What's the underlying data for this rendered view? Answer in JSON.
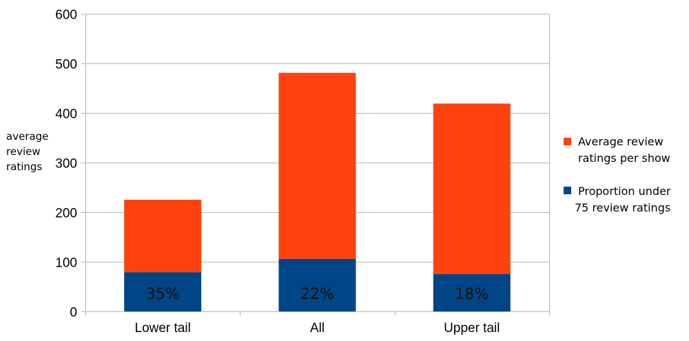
{
  "chart_data": {
    "type": "bar",
    "stacked": true,
    "categories": [
      "Lower tail",
      "All",
      "Upper tail"
    ],
    "series": [
      {
        "name": "Proportion under 75  review ratings",
        "legend_lines": [
          "Proportion under",
          "75  review ratings"
        ],
        "color": "#004586",
        "values": [
          79,
          106,
          75
        ],
        "labels": [
          "35%",
          "22%",
          "18%"
        ]
      },
      {
        "name": "Average review ratings per show",
        "legend_lines": [
          "Average review",
          "ratings per show"
        ],
        "color": "#FF420E",
        "values": [
          146,
          375,
          344
        ]
      }
    ],
    "ylabel_lines": [
      "average",
      "review",
      "ratings"
    ],
    "xlabel": "",
    "ylim": [
      0,
      600
    ],
    "yticks": [
      0,
      100,
      200,
      300,
      400,
      500,
      600
    ],
    "grid": true,
    "legend_position": "right"
  }
}
